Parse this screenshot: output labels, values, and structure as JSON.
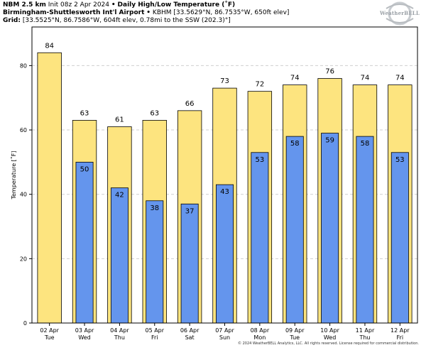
{
  "header": {
    "line1_bold": "NBM 2.5 km",
    "line1_init": "Init 08z 2 Apr 2024",
    "line1_sep": "•",
    "line1_product": "Daily High/Low Temperature (˚F)",
    "line2_bold": "Birmingham-Shuttlesworth Int'l Airport",
    "line2_sep": "•",
    "line2_rest": "KBHM [33.5629°N, 86.7535°W, 650ft elev]",
    "line3_bold": "Grid:",
    "line3_rest": "[33.5525°N, 86.7586°W, 604ft elev, 0.78mi to the SSW (202.3)°]"
  },
  "logo": {
    "text": "WeatherBELL",
    "icon": "weatherbell-swirl-logo"
  },
  "copyright": "© 2024 WeatherBELL Analytics, LLC. All rights reserved. License required for commercial distribution.",
  "colors": {
    "high": "#fde47f",
    "low": "#6495ed",
    "edge": "#000000",
    "grid": "#cfcfcf"
  },
  "chart_data": {
    "type": "bar",
    "ylabel": "Temperature [˚F]",
    "ylim": [
      0,
      92
    ],
    "yticks": [
      0,
      20,
      40,
      60,
      80
    ],
    "grid": true,
    "categories": [
      {
        "date": "02 Apr",
        "day": "Tue"
      },
      {
        "date": "03 Apr",
        "day": "Wed"
      },
      {
        "date": "04 Apr",
        "day": "Thu"
      },
      {
        "date": "05 Apr",
        "day": "Fri"
      },
      {
        "date": "06 Apr",
        "day": "Sat"
      },
      {
        "date": "07 Apr",
        "day": "Sun"
      },
      {
        "date": "08 Apr",
        "day": "Mon"
      },
      {
        "date": "09 Apr",
        "day": "Tue"
      },
      {
        "date": "10 Apr",
        "day": "Wed"
      },
      {
        "date": "11 Apr",
        "day": "Thu"
      },
      {
        "date": "12 Apr",
        "day": "Fri"
      }
    ],
    "series": [
      {
        "values": [
          84,
          63,
          61,
          63,
          66,
          73,
          72,
          74,
          76,
          74,
          74
        ]
      },
      {
        "values": [
          null,
          50,
          42,
          38,
          37,
          43,
          53,
          58,
          59,
          58,
          53
        ]
      }
    ]
  }
}
